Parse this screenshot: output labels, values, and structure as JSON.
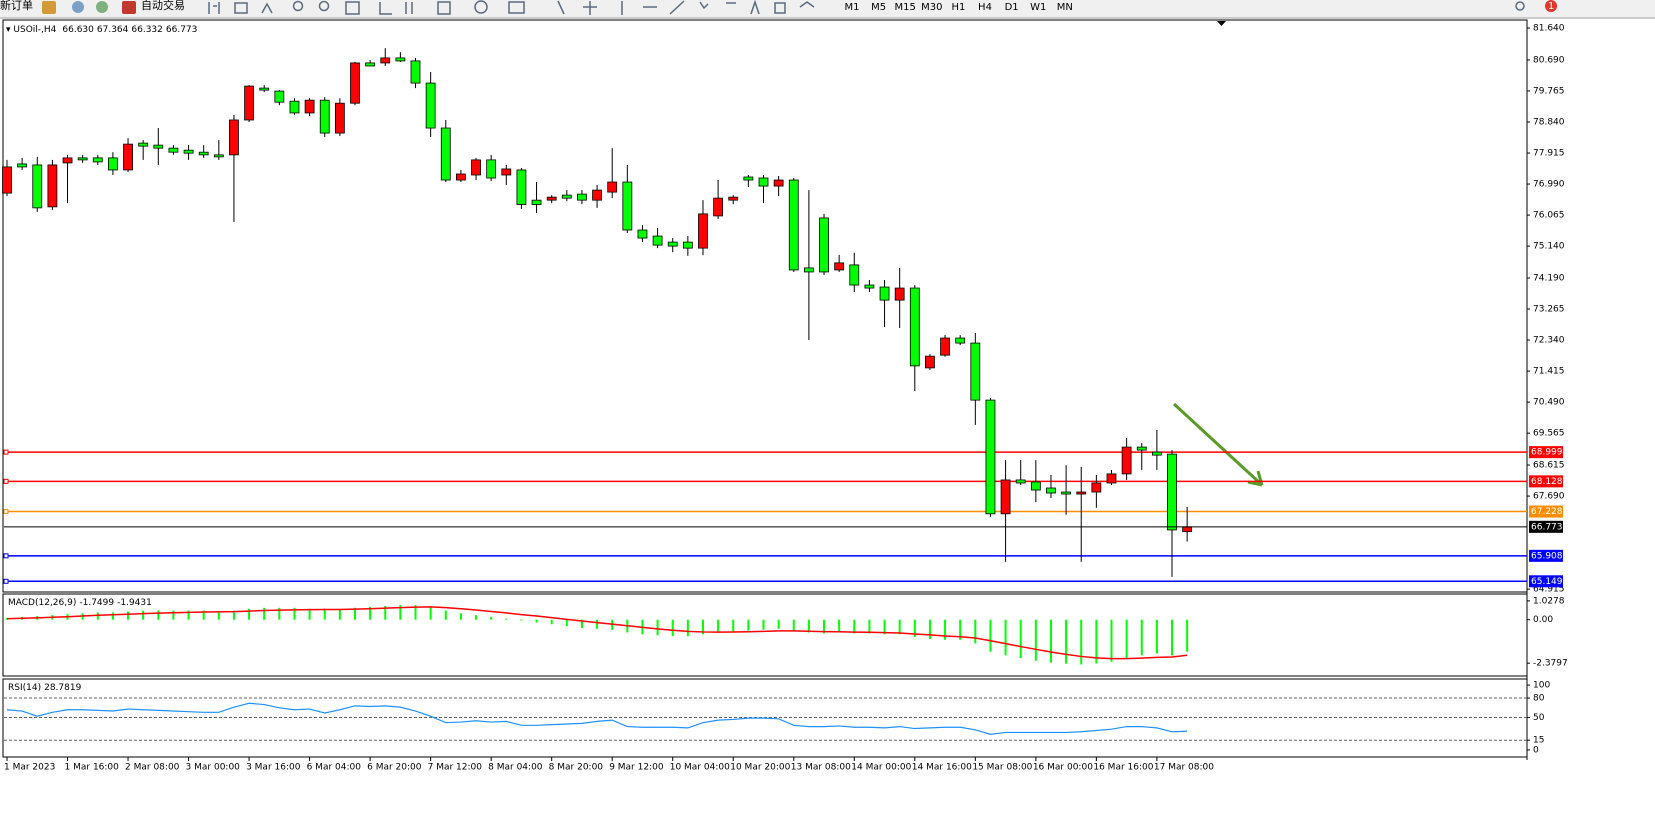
{
  "toolbar": {
    "new_order": "新订单",
    "auto_trading": "自动交易",
    "timeframes": [
      "M1",
      "M5",
      "M15",
      "M30",
      "H1",
      "H4",
      "D1",
      "W1",
      "MN"
    ],
    "badge": "1"
  },
  "chart_data": [
    {
      "type": "candlestick",
      "symbol": "USOil-,H4",
      "ohlc_labels": [
        "66.630",
        "67.364",
        "66.332",
        "66.773"
      ],
      "categories": [
        "1 Mar 2023",
        null,
        null,
        null,
        "1 Mar 16:00",
        null,
        null,
        null,
        "2 Mar 08:00",
        null,
        null,
        null,
        "3 Mar 00:00",
        null,
        null,
        null,
        "3 Mar 16:00",
        null,
        null,
        null,
        "6 Mar 04:00",
        null,
        null,
        null,
        "6 Mar 20:00",
        null,
        null,
        null,
        "7 Mar 12:00",
        null,
        null,
        null,
        "8 Mar 04:00",
        null,
        null,
        null,
        "8 Mar 20:00",
        null,
        null,
        null,
        "9 Mar 12:00",
        null,
        null,
        null,
        "10 Mar 04:00",
        null,
        null,
        null,
        "10 Mar 20:00",
        null,
        null,
        null,
        "13 Mar 08:00",
        null,
        null,
        null,
        "14 Mar 00:00",
        null,
        null,
        null,
        "14 Mar 16:00",
        null,
        null,
        null,
        "15 Mar 08:00",
        null,
        null,
        null,
        "16 Mar 00:00",
        null,
        null,
        null,
        "16 Mar 16:00",
        null,
        null,
        null,
        "17 Mar 08:00",
        null,
        null
      ],
      "open": [
        76.72,
        77.59,
        77.56,
        76.31,
        77.62,
        77.77,
        77.77,
        77.77,
        77.41,
        78.21,
        78.15,
        78.06,
        78.0,
        77.94,
        77.86,
        77.86,
        78.9,
        79.85,
        79.76,
        79.46,
        79.11,
        79.49,
        78.51,
        79.4,
        80.6,
        80.6,
        80.75,
        80.66,
        80.0,
        78.66,
        77.11,
        77.26,
        77.71,
        77.26,
        77.41,
        76.51,
        76.51,
        76.66,
        76.69,
        76.51,
        76.75,
        77.05,
        75.62,
        75.44,
        75.26,
        75.26,
        75.08,
        76.04,
        76.51,
        77.2,
        77.17,
        76.93,
        77.11,
        74.49,
        75.98,
        74.43,
        74.58,
        73.98,
        73.92,
        73.53,
        73.89,
        71.51,
        71.89,
        72.4,
        72.25,
        70.55,
        67.16,
        68.17,
        68.11,
        67.93,
        67.81,
        67.75,
        67.81,
        68.08,
        68.35,
        69.15,
        69.0,
        68.94,
        66.63
      ],
      "high": [
        77.71,
        77.77,
        77.8,
        77.71,
        77.86,
        77.86,
        77.86,
        77.94,
        78.36,
        78.3,
        78.66,
        78.15,
        78.15,
        78.15,
        78.3,
        79.05,
        79.94,
        79.94,
        79.79,
        79.55,
        79.55,
        79.58,
        79.55,
        80.63,
        80.69,
        81.04,
        80.92,
        80.75,
        80.33,
        78.9,
        77.41,
        77.77,
        77.86,
        77.56,
        77.47,
        77.05,
        76.66,
        76.81,
        76.81,
        76.96,
        78.06,
        77.56,
        75.77,
        75.68,
        75.38,
        75.44,
        76.51,
        77.11,
        76.66,
        77.26,
        77.26,
        77.23,
        77.17,
        76.81,
        76.1,
        74.88,
        74.94,
        74.13,
        74.13,
        74.49,
        73.98,
        71.92,
        72.49,
        72.49,
        72.55,
        70.61,
        68.76,
        68.76,
        68.76,
        68.32,
        68.61,
        68.56,
        68.32,
        68.47,
        69.42,
        69.27,
        69.66,
        69.06,
        67.364
      ],
      "low": [
        76.63,
        77.41,
        76.16,
        76.22,
        76.42,
        77.62,
        77.56,
        77.26,
        77.35,
        77.71,
        77.56,
        77.86,
        77.71,
        77.77,
        77.71,
        75.86,
        78.84,
        79.73,
        79.34,
        79.05,
        79.02,
        78.39,
        78.42,
        79.34,
        80.51,
        80.51,
        80.63,
        79.85,
        78.39,
        77.05,
        77.05,
        77.11,
        77.08,
        76.96,
        76.25,
        76.13,
        76.42,
        76.48,
        76.39,
        76.28,
        76.57,
        75.53,
        75.26,
        75.08,
        74.96,
        74.85,
        74.87,
        75.95,
        76.39,
        76.9,
        76.42,
        76.63,
        74.37,
        72.34,
        74.28,
        74.37,
        73.77,
        73.77,
        72.73,
        72.7,
        70.82,
        71.45,
        71.84,
        72.19,
        69.81,
        67.07,
        65.73,
        68.02,
        67.51,
        67.63,
        67.13,
        65.73,
        67.34,
        68.02,
        68.17,
        68.47,
        68.47,
        65.28,
        66.332
      ],
      "close": [
        77.5,
        77.5,
        76.28,
        77.56,
        77.77,
        77.71,
        77.65,
        77.41,
        78.18,
        78.12,
        78.06,
        77.94,
        77.91,
        77.86,
        77.8,
        78.9,
        79.91,
        79.79,
        79.43,
        79.11,
        79.49,
        78.51,
        79.4,
        80.6,
        80.51,
        80.75,
        80.66,
        80.0,
        78.66,
        77.11,
        77.29,
        77.71,
        77.17,
        77.44,
        76.38,
        76.38,
        76.6,
        76.57,
        76.51,
        76.81,
        77.05,
        75.62,
        75.38,
        75.17,
        75.14,
        75.08,
        76.1,
        76.57,
        76.6,
        77.11,
        76.93,
        77.11,
        74.43,
        74.37,
        74.37,
        74.64,
        73.98,
        73.89,
        73.53,
        73.89,
        71.57,
        71.86,
        72.4,
        72.25,
        70.55,
        67.16,
        68.17,
        68.08,
        67.87,
        67.78,
        67.75,
        67.81,
        68.08,
        68.35,
        69.15,
        69.06,
        68.91,
        66.68,
        66.773
      ],
      "up_color": "#ff0000",
      "down_color": "#00ff00",
      "ylim": [
        64.83,
        81.88
      ],
      "yticks": [
        {
          "value": 81.64,
          "label": "81.640"
        },
        {
          "value": 80.69,
          "label": "80.690"
        },
        79.765,
        {
          "value": 78.84,
          "label": "78.840"
        },
        77.915,
        {
          "value": 76.99,
          "label": "76.990"
        },
        76.065,
        {
          "value": 75.14,
          "label": "75.140"
        },
        {
          "value": 74.19,
          "label": "74.190"
        },
        73.265,
        {
          "value": 72.34,
          "label": "72.340"
        },
        71.415,
        {
          "value": 70.49,
          "label": "70.490"
        },
        69.565,
        68.615,
        {
          "value": 67.69,
          "label": "67.690"
        },
        64.915
      ],
      "hlines": [
        {
          "value": 68.999,
          "color": "#ff0000"
        },
        {
          "value": 68.128,
          "color": "#ff0000"
        },
        {
          "value": 67.228,
          "color": "#ff8c00"
        },
        {
          "value": 65.908,
          "color": "#0000ff"
        },
        {
          "value": 65.149,
          "color": "#0000ff"
        }
      ]
    },
    {
      "type": "macd",
      "title": "MACD(12,26,9)",
      "values": [
        0.1,
        0.15,
        0.2,
        0.25,
        0.3,
        0.35,
        0.4,
        0.4,
        0.45,
        0.5,
        0.5,
        0.5,
        0.5,
        0.5,
        0.45,
        0.5,
        0.6,
        0.65,
        0.65,
        0.65,
        0.6,
        0.6,
        0.55,
        0.65,
        0.7,
        0.75,
        0.8,
        0.8,
        0.7,
        0.5,
        0.35,
        0.25,
        0.15,
        0.05,
        -0.05,
        -0.15,
        -0.25,
        -0.35,
        -0.45,
        -0.5,
        -0.55,
        -0.7,
        -0.8,
        -0.85,
        -0.9,
        -0.9,
        -0.8,
        -0.7,
        -0.65,
        -0.6,
        -0.55,
        -0.5,
        -0.6,
        -0.7,
        -0.75,
        -0.7,
        -0.75,
        -0.75,
        -0.8,
        -0.8,
        -0.95,
        -1.05,
        -1.1,
        -1.1,
        -1.3,
        -1.75,
        -1.95,
        -2.1,
        -2.25,
        -2.35,
        -2.4,
        -2.45,
        -2.4,
        -2.3,
        -2.1,
        -1.95,
        -1.85,
        -1.95,
        -1.7499
      ],
      "signal": [
        0.05,
        0.08,
        0.1,
        0.13,
        0.16,
        0.2,
        0.24,
        0.27,
        0.3,
        0.33,
        0.36,
        0.38,
        0.4,
        0.42,
        0.43,
        0.44,
        0.47,
        0.5,
        0.52,
        0.54,
        0.55,
        0.56,
        0.56,
        0.58,
        0.6,
        0.63,
        0.66,
        0.69,
        0.7,
        0.66,
        0.6,
        0.53,
        0.45,
        0.37,
        0.28,
        0.2,
        0.11,
        0.02,
        -0.07,
        -0.16,
        -0.24,
        -0.33,
        -0.42,
        -0.5,
        -0.58,
        -0.64,
        -0.67,
        -0.68,
        -0.67,
        -0.66,
        -0.64,
        -0.61,
        -0.61,
        -0.63,
        -0.65,
        -0.66,
        -0.68,
        -0.69,
        -0.71,
        -0.73,
        -0.78,
        -0.83,
        -0.89,
        -0.93,
        -1.0,
        -1.15,
        -1.31,
        -1.47,
        -1.62,
        -1.77,
        -1.9,
        -2.01,
        -2.09,
        -2.13,
        -2.13,
        -2.1,
        -2.06,
        -2.04,
        -1.9431
      ],
      "color": "#00ff00",
      "signal_color": "#ff0000",
      "ylim": [
        -3.08,
        1.405
      ],
      "yticks": [
        1.0278,
        {
          "value": 0,
          "label": "0.00"
        },
        -2.3797
      ]
    },
    {
      "type": "line",
      "title": "RSI(14)",
      "values": [
        62,
        60,
        52,
        58,
        62,
        62,
        61,
        60,
        63,
        62,
        61,
        60,
        59,
        58,
        58,
        66,
        72,
        70,
        65,
        62,
        63,
        57,
        62,
        68,
        67,
        68,
        66,
        60,
        52,
        42,
        43,
        45,
        43,
        44,
        38,
        38,
        39,
        40,
        41,
        44,
        46,
        36,
        35,
        35,
        35,
        34,
        42,
        46,
        47,
        49,
        49,
        48,
        38,
        36,
        36,
        37,
        35,
        35,
        34,
        36,
        33,
        34,
        35,
        35,
        31,
        24,
        27,
        27,
        27,
        27,
        27,
        28,
        30,
        32,
        36,
        36,
        34,
        28,
        28.7819
      ],
      "color": "#1e90ff",
      "ylim": [
        -10.9,
        109.4
      ],
      "yticks": [
        100,
        80,
        50,
        15,
        0
      ],
      "levels": [
        80,
        50,
        15
      ]
    }
  ]
}
